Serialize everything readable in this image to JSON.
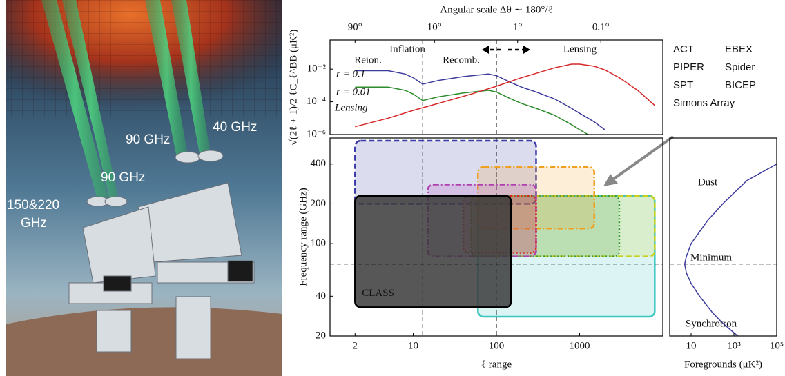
{
  "image": {
    "labels": [
      "40 GHz",
      "90 GHz",
      "90 GHz",
      [
        "150&220",
        "GHz"
      ]
    ]
  },
  "chart_data": [
    {
      "type": "line",
      "xscale": "log",
      "yscale": "log",
      "x2label": "Angular scale Δθ ∼ 180°/ℓ",
      "ylabel": "√(2ℓ + 1)/2 ℓC_ℓ^BB (μK²)",
      "xlim": [
        1,
        10000
      ],
      "ylim": [
        1e-06,
        0.6
      ],
      "x2ticks": [
        {
          "value": 2,
          "label": "90°"
        },
        {
          "value": 18,
          "label": "10°"
        },
        {
          "value": 180,
          "label": "1°"
        },
        {
          "value": 1800,
          "label": "0.1°"
        }
      ],
      "yticks": [
        {
          "value": 1e-06,
          "label": "10⁻⁶"
        },
        {
          "value": 0.0001,
          "label": "10⁻⁴"
        },
        {
          "value": 0.01,
          "label": "10⁻²"
        }
      ],
      "vlines": [
        13,
        100
      ],
      "annotations": [
        "Inflation",
        "Lensing",
        "Reion.",
        "Recomb."
      ],
      "series": [
        {
          "name": "r = 0.1",
          "color": "#3b3b9c",
          "x": [
            2,
            5,
            8,
            10,
            13,
            20,
            40,
            80,
            100,
            150,
            200,
            300,
            500,
            800,
            1000,
            1500,
            2000
          ],
          "values": [
            0.008,
            0.008,
            0.005,
            0.003,
            0.0012,
            0.002,
            0.0035,
            0.005,
            0.004,
            0.0015,
            0.0008,
            0.0004,
            0.00015,
            4e-05,
            2e-05,
            6e-06,
            2e-06
          ]
        },
        {
          "name": "r = 0.01",
          "color": "#2e8b2e",
          "x": [
            2,
            5,
            8,
            10,
            13,
            20,
            40,
            80,
            100,
            150,
            200,
            300,
            500,
            800,
            1000,
            1500
          ],
          "values": [
            0.0008,
            0.0008,
            0.0005,
            0.0003,
            0.00012,
            0.0002,
            0.00035,
            0.0005,
            0.0004,
            0.00015,
            8e-05,
            4e-05,
            1.5e-05,
            4e-06,
            2e-06,
            6e-07
          ]
        },
        {
          "name": "Lensing",
          "color": "#d62728",
          "x": [
            2,
            5,
            10,
            20,
            50,
            100,
            200,
            500,
            800,
            1000,
            1500,
            2000,
            3000,
            5000,
            8000
          ],
          "values": [
            3e-06,
            1e-05,
            3e-05,
            8e-05,
            0.0003,
            0.0009,
            0.003,
            0.012,
            0.02,
            0.02,
            0.015,
            0.009,
            0.003,
            0.0005,
            6e-05
          ]
        }
      ]
    },
    {
      "type": "range",
      "xscale": "log",
      "yscale": "log",
      "xlabel": "ℓ range",
      "ylabel": "Frequency range (GHz)",
      "xlim": [
        1,
        10000
      ],
      "ylim": [
        20,
        630
      ],
      "xticks": [
        2,
        10,
        100,
        1000
      ],
      "yticks": [
        20,
        40,
        100,
        200,
        400
      ],
      "vlines": [
        13,
        100
      ],
      "hline": 70,
      "legend": "outside-right",
      "series": [
        {
          "name": "ACT",
          "color": "#3cc6c0",
          "linestyle": "solid",
          "x_range": [
            60,
            8000
          ],
          "y_range": [
            28,
            230
          ]
        },
        {
          "name": "PIPER",
          "color": "#3c3ca8",
          "linestyle": "dashed",
          "x_range": [
            2,
            300
          ],
          "y_range": [
            200,
            600
          ]
        },
        {
          "name": "SPT",
          "color": "#c8d21e",
          "linestyle": "dashed",
          "x_range": [
            50,
            8000
          ],
          "y_range": [
            80,
            230
          ]
        },
        {
          "name": "Simons Array",
          "color": "#3a9a3a",
          "linestyle": "dotted",
          "x_range": [
            50,
            3000
          ],
          "y_range": [
            80,
            230
          ]
        },
        {
          "name": "EBEX",
          "color": "#f0a020",
          "linestyle": "dashdot",
          "x_range": [
            60,
            1500
          ],
          "y_range": [
            130,
            380
          ]
        },
        {
          "name": "Spider",
          "color": "#b040b0",
          "linestyle": "dashdot",
          "x_range": [
            15,
            300
          ],
          "y_range": [
            80,
            280
          ]
        },
        {
          "name": "BICEP",
          "color": "#e02020",
          "linestyle": "dotted",
          "x_range": [
            40,
            300
          ],
          "y_range": [
            85,
            230
          ]
        },
        {
          "name": "CLASS",
          "color": "#3a3a3a",
          "linestyle": "solid",
          "label_position": "inside",
          "x_range": [
            2,
            150
          ],
          "y_range": [
            33,
            230
          ]
        }
      ]
    },
    {
      "type": "line",
      "xscale": "log",
      "yscale": "log",
      "xlabel": "Foregrounds (μK²)",
      "xlim": [
        1,
        100000
      ],
      "ylim": [
        20,
        630
      ],
      "xticks": [
        10,
        {
          "value": 1000,
          "label": "10³"
        },
        {
          "value": 100000,
          "label": "10⁵"
        }
      ],
      "hline": 70,
      "annotations": [
        "Dust",
        "Minimum",
        "Synchrotron"
      ],
      "series": [
        {
          "color": "#3b3b9c",
          "x": [
            1500,
            300,
            100,
            25,
            10,
            6,
            5,
            6,
            10,
            60,
            300,
            4000,
            100000
          ],
          "values": [
            20,
            25,
            30,
            40,
            50,
            60,
            70,
            80,
            100,
            150,
            200,
            300,
            400
          ]
        }
      ]
    }
  ]
}
